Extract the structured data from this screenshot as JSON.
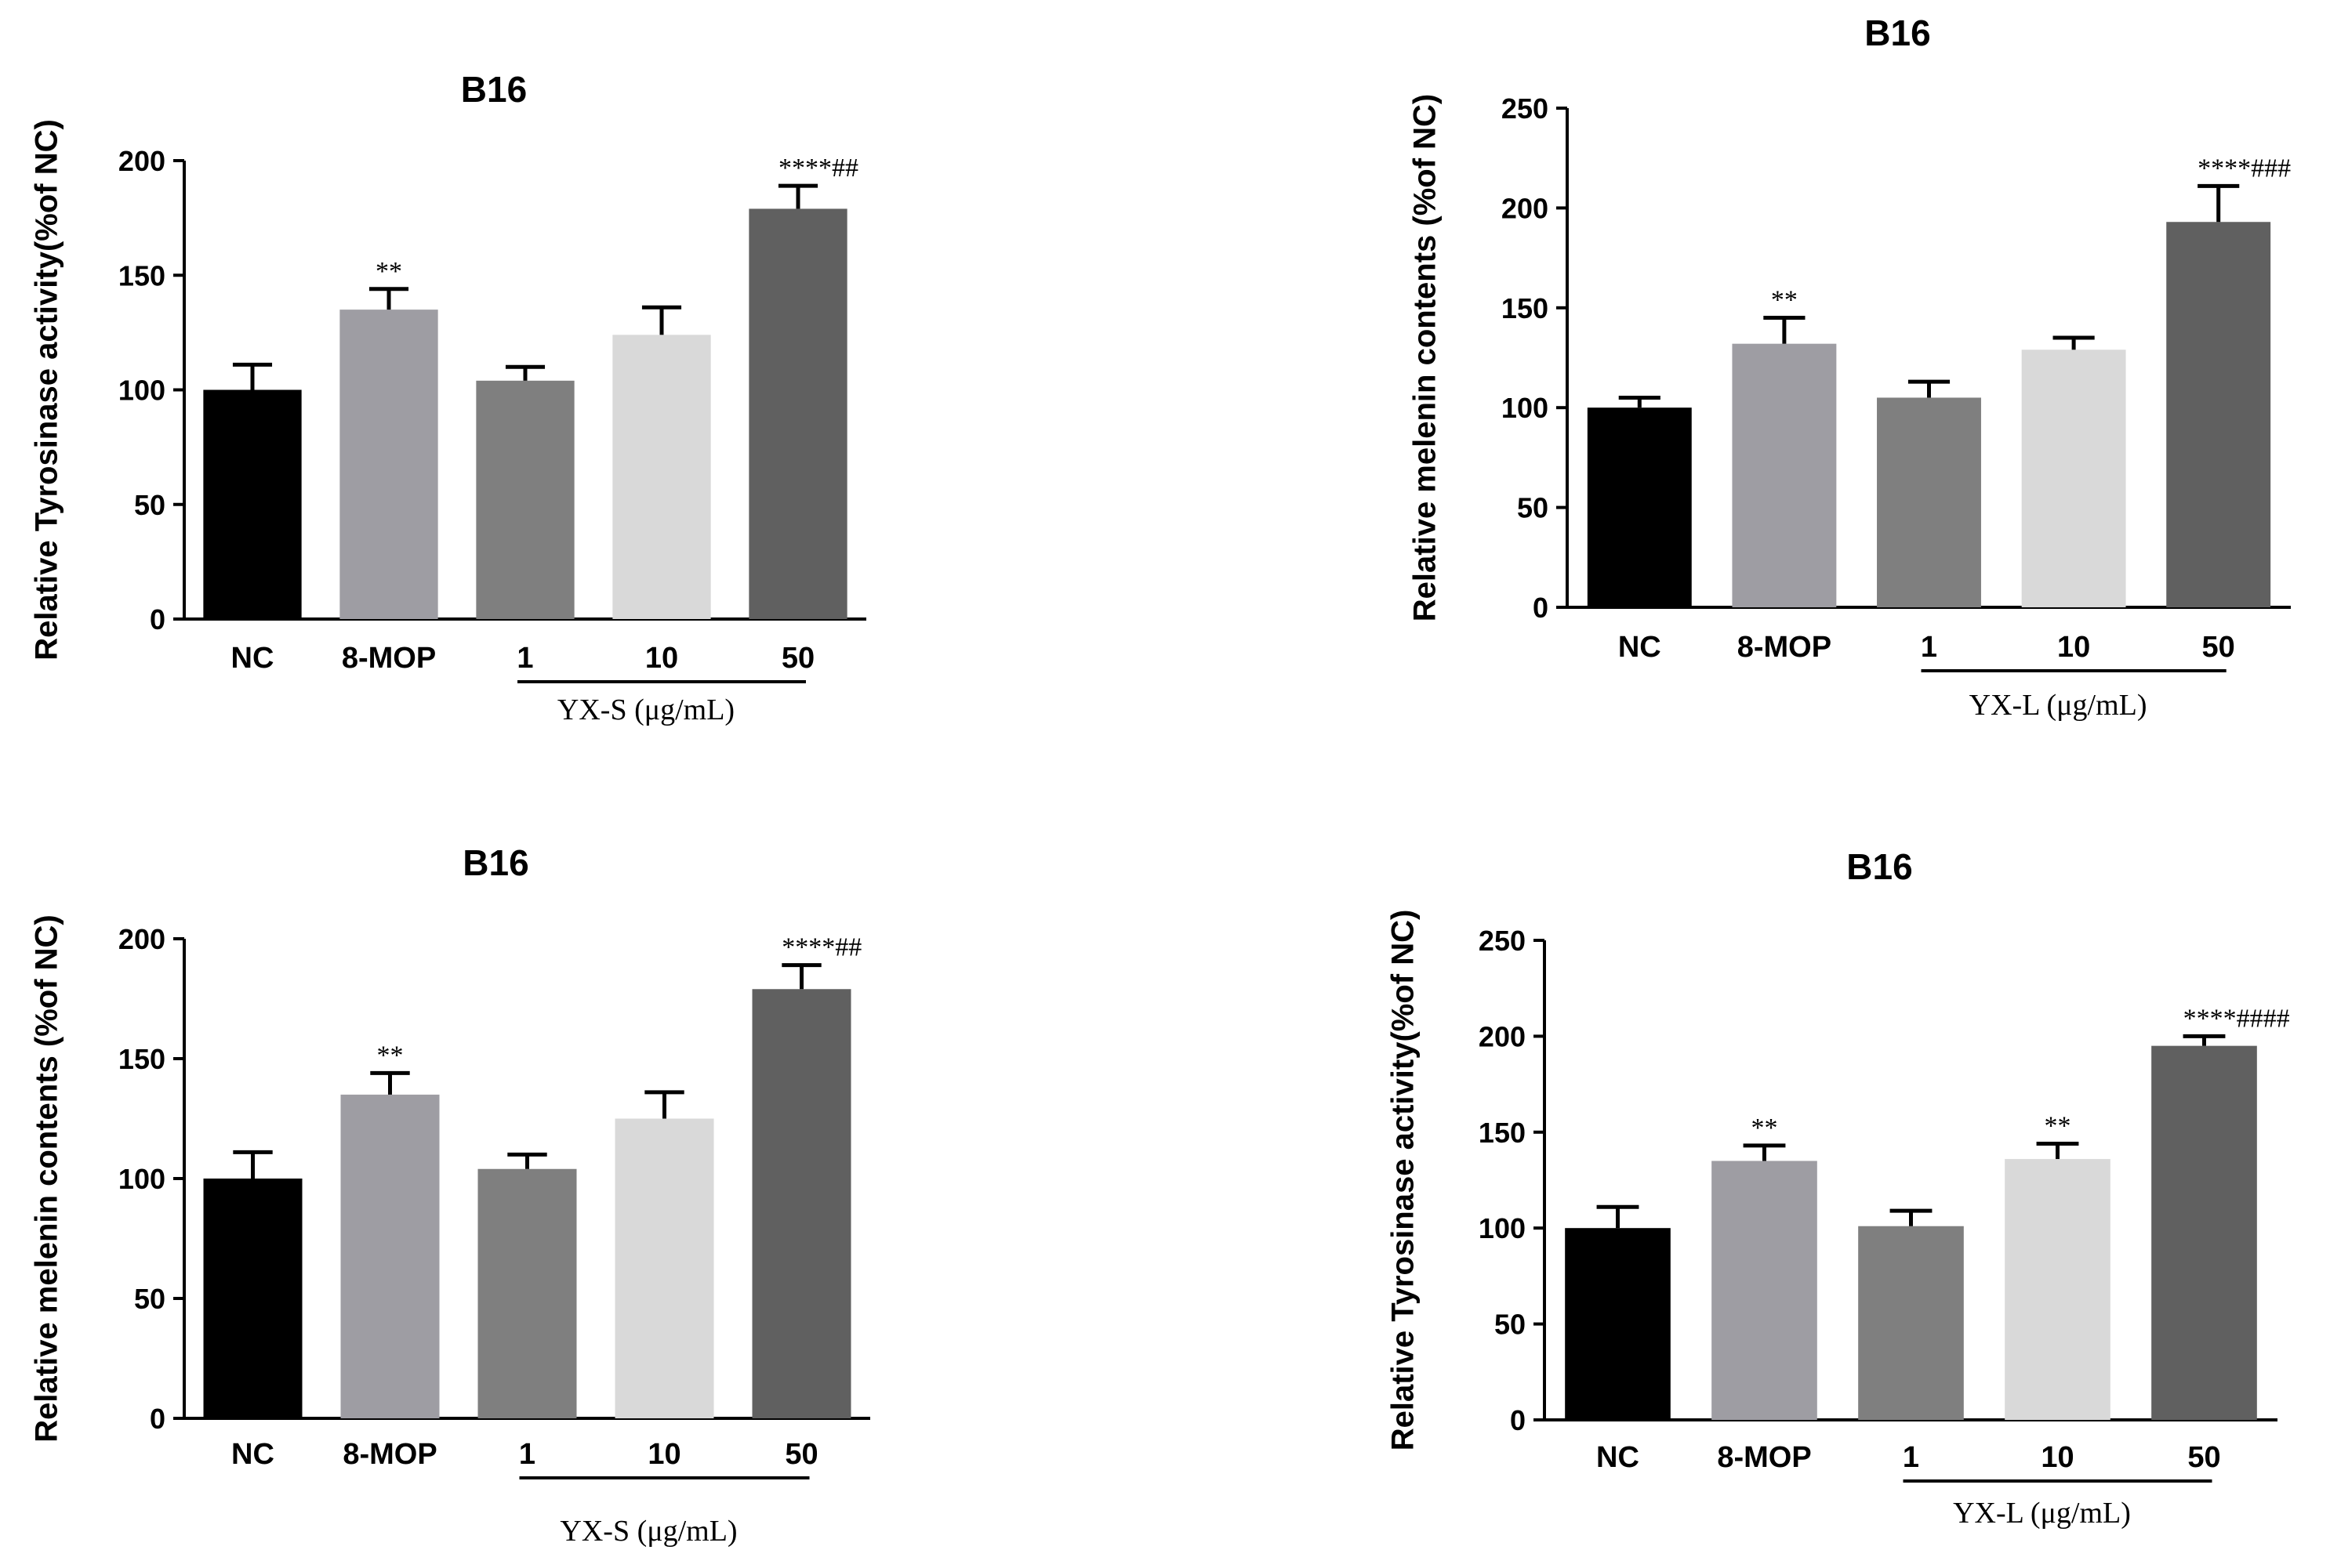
{
  "chart_data": [
    {
      "type": "bar",
      "title": "B16",
      "ylabel": "Relative Tyrosinase activity(%of NC)",
      "ylim": [
        0,
        200
      ],
      "yticks": [
        0,
        50,
        100,
        150,
        200
      ],
      "categories": [
        "NC",
        "8-MOP",
        "1",
        "10",
        "50"
      ],
      "values": [
        100,
        135,
        104,
        124,
        179
      ],
      "errors": [
        11,
        9,
        6,
        12,
        10
      ],
      "colors": [
        "#000000",
        "#9e9da3",
        "#7f7f7f",
        "#d9d9d9",
        "#606060"
      ],
      "annotations": [
        "",
        "**",
        "",
        "",
        "****##"
      ],
      "group_label": "YX-S (μg/mL)"
    },
    {
      "type": "bar",
      "title": "B16",
      "ylabel": "Relative melenin contents (%of NC)",
      "ylim": [
        0,
        250
      ],
      "yticks": [
        0,
        50,
        100,
        150,
        200,
        250
      ],
      "categories": [
        "NC",
        "8-MOP",
        "1",
        "10",
        "50"
      ],
      "values": [
        100,
        132,
        105,
        129,
        193
      ],
      "errors": [
        5,
        13,
        8,
        6,
        18
      ],
      "colors": [
        "#000000",
        "#9e9da3",
        "#7f7f7f",
        "#d9d9d9",
        "#606060"
      ],
      "annotations": [
        "",
        "**",
        "",
        "",
        "****###"
      ],
      "group_label": "YX-L (μg/mL)"
    },
    {
      "type": "bar",
      "title": "B16",
      "ylabel": "Relative melenin contents (%of NC)",
      "ylim": [
        0,
        200
      ],
      "yticks": [
        0,
        50,
        100,
        150,
        200
      ],
      "categories": [
        "NC",
        "8-MOP",
        "1",
        "10",
        "50"
      ],
      "values": [
        100,
        135,
        104,
        125,
        179
      ],
      "errors": [
        11,
        9,
        6,
        11,
        10
      ],
      "colors": [
        "#000000",
        "#9e9da3",
        "#7f7f7f",
        "#d9d9d9",
        "#606060"
      ],
      "annotations": [
        "",
        "**",
        "",
        "",
        "****##"
      ],
      "group_label": "YX-S (μg/mL)"
    },
    {
      "type": "bar",
      "title": "B16",
      "ylabel": "Relative Tyrosinase activity(%of NC)",
      "ylim": [
        0,
        250
      ],
      "yticks": [
        0,
        50,
        100,
        150,
        200,
        250
      ],
      "categories": [
        "NC",
        "8-MOP",
        "1",
        "10",
        "50"
      ],
      "values": [
        100,
        135,
        101,
        136,
        195
      ],
      "errors": [
        11,
        8,
        8,
        8,
        5
      ],
      "colors": [
        "#000000",
        "#9e9da3",
        "#7f7f7f",
        "#d9d9d9",
        "#606060"
      ],
      "annotations": [
        "",
        "**",
        "",
        "**",
        "****####"
      ],
      "group_label": "YX-L (μg/mL)"
    }
  ]
}
